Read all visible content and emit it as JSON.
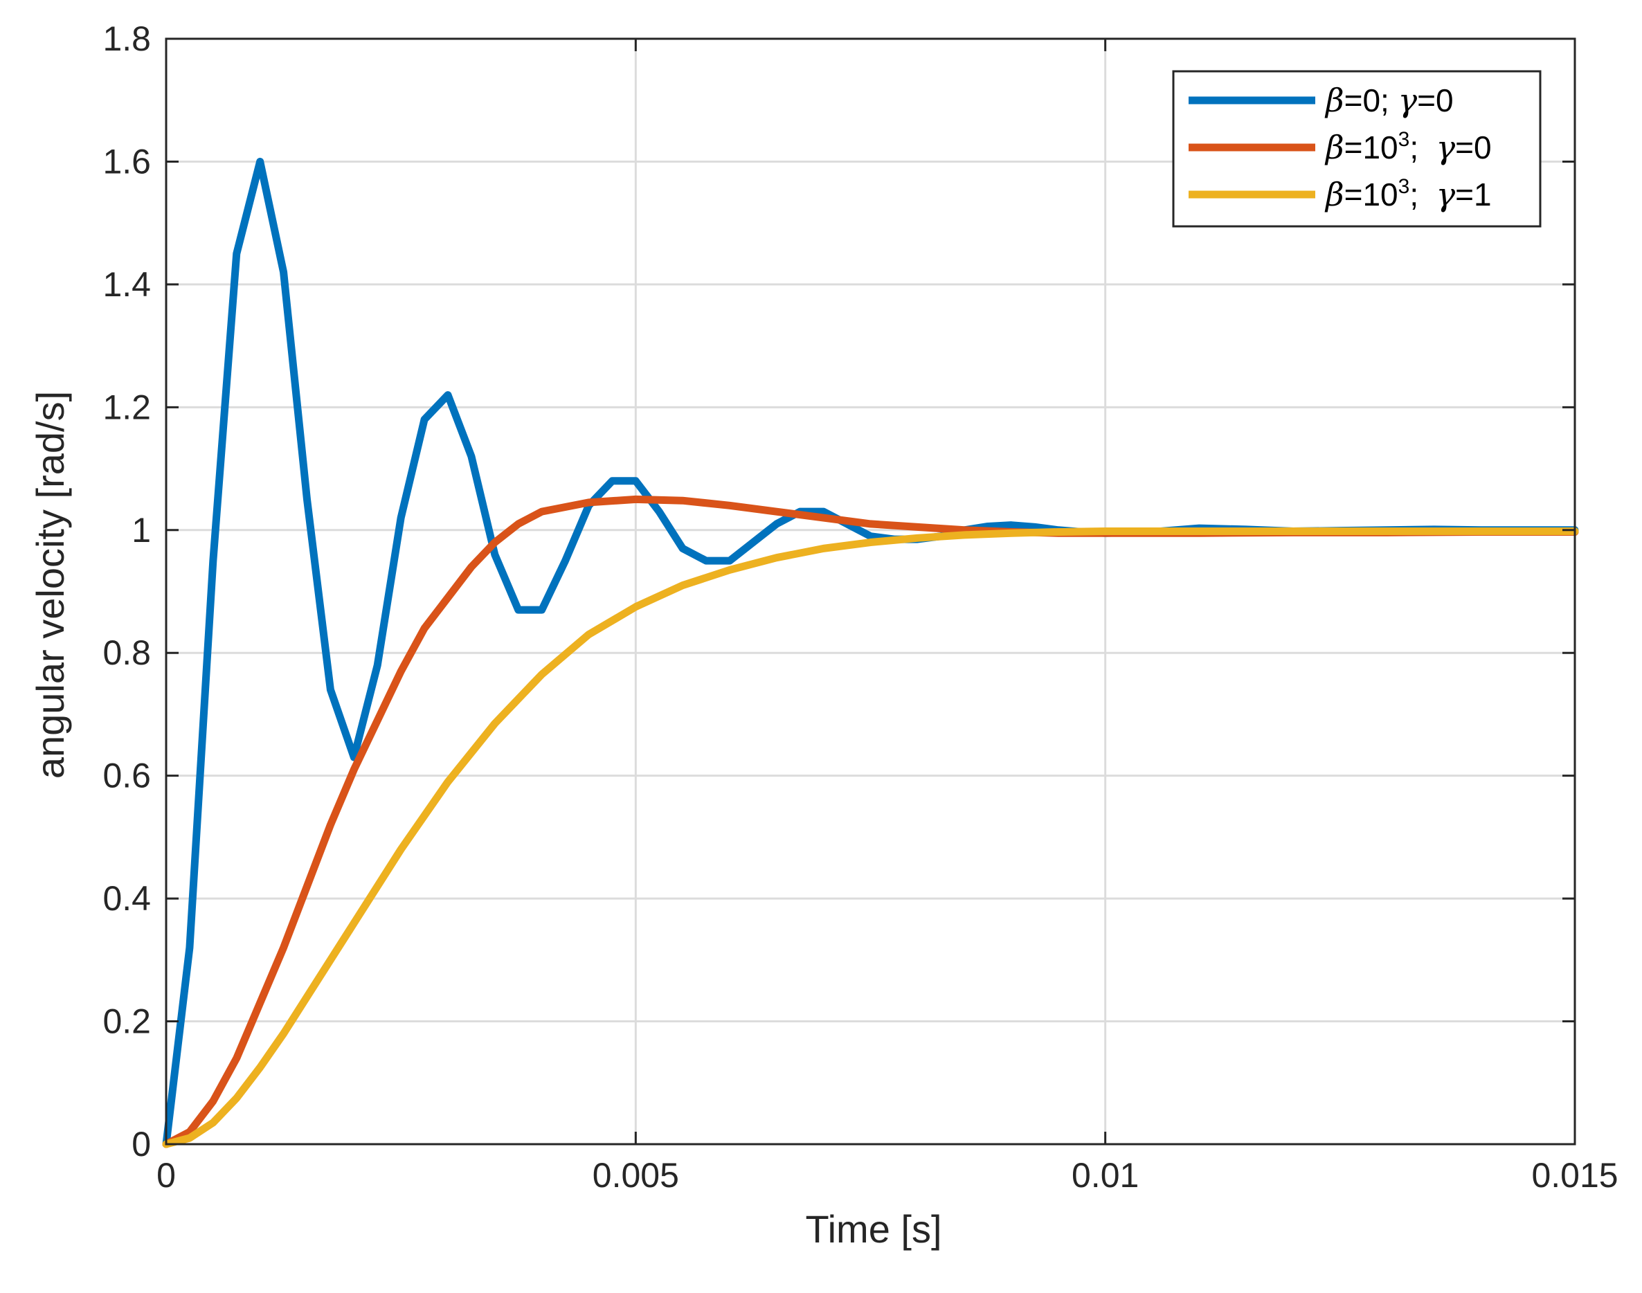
{
  "chart_data": {
    "type": "line",
    "title": "",
    "xlabel": "Time [s]",
    "ylabel": "angular velocity [rad/s]",
    "xlim": [
      0,
      0.015
    ],
    "ylim": [
      0,
      1.8
    ],
    "xticks": [
      0,
      0.005,
      0.01,
      0.015
    ],
    "xtick_labels": [
      "0",
      "0.005",
      "0.01",
      "0.015"
    ],
    "yticks": [
      0,
      0.2,
      0.4,
      0.6,
      0.8,
      1.0,
      1.2,
      1.4,
      1.6,
      1.8
    ],
    "ytick_labels": [
      "0",
      "0.2",
      "0.4",
      "0.6",
      "0.8",
      "1",
      "1.2",
      "1.4",
      "1.6",
      "1.8"
    ],
    "grid": true,
    "legend_position": "top-right",
    "series": [
      {
        "name": "β=0; γ=0",
        "legend": {
          "beta_symbol": "β",
          "beta_value": "=0;",
          "beta_exp": "",
          "gamma_symbol": "γ",
          "gamma_value": "=0"
        },
        "color": "#0072BD",
        "x": [
          0,
          0.00025,
          0.0005,
          0.00075,
          0.001,
          0.00125,
          0.0015,
          0.00175,
          0.002,
          0.00225,
          0.0025,
          0.00275,
          0.003,
          0.00325,
          0.0035,
          0.00375,
          0.004,
          0.00425,
          0.0045,
          0.00475,
          0.005,
          0.00525,
          0.0055,
          0.00575,
          0.006,
          0.00625,
          0.0065,
          0.00675,
          0.007,
          0.00725,
          0.0075,
          0.00775,
          0.008,
          0.00825,
          0.0085,
          0.00875,
          0.009,
          0.00925,
          0.0095,
          0.00975,
          0.01,
          0.0105,
          0.011,
          0.0115,
          0.012,
          0.0125,
          0.013,
          0.0135,
          0.014,
          0.0145,
          0.015
        ],
        "y": [
          0,
          0.32,
          0.95,
          1.45,
          1.6,
          1.42,
          1.05,
          0.74,
          0.63,
          0.78,
          1.02,
          1.18,
          1.22,
          1.12,
          0.96,
          0.87,
          0.87,
          0.95,
          1.04,
          1.08,
          1.08,
          1.03,
          0.97,
          0.95,
          0.95,
          0.98,
          1.01,
          1.03,
          1.03,
          1.01,
          0.99,
          0.985,
          0.985,
          0.99,
          1.0,
          1.006,
          1.008,
          1.005,
          1.0,
          0.997,
          0.995,
          0.997,
          1.003,
          1.001,
          0.998,
          0.999,
          1.0,
          1.001,
          1.0,
          1.0,
          1.0
        ]
      },
      {
        "name": "β=10³; γ=0",
        "legend": {
          "beta_symbol": "β",
          "beta_value": "=10",
          "beta_exp": "3",
          "gamma_symbol": "γ",
          "gamma_value": "=0"
        },
        "color": "#D95319",
        "x": [
          0,
          0.00025,
          0.0005,
          0.00075,
          0.001,
          0.00125,
          0.0015,
          0.00175,
          0.002,
          0.00225,
          0.0025,
          0.00275,
          0.003,
          0.00325,
          0.0035,
          0.00375,
          0.004,
          0.0045,
          0.005,
          0.0055,
          0.006,
          0.0065,
          0.007,
          0.0075,
          0.008,
          0.0085,
          0.009,
          0.0095,
          0.01,
          0.011,
          0.012,
          0.013,
          0.014,
          0.015
        ],
        "y": [
          0,
          0.02,
          0.07,
          0.14,
          0.23,
          0.32,
          0.42,
          0.52,
          0.61,
          0.69,
          0.77,
          0.84,
          0.89,
          0.94,
          0.98,
          1.01,
          1.03,
          1.045,
          1.05,
          1.048,
          1.04,
          1.03,
          1.02,
          1.01,
          1.005,
          1.0,
          0.997,
          0.995,
          0.995,
          0.995,
          0.996,
          0.996,
          0.997,
          0.997
        ]
      },
      {
        "name": "β=10³; γ=1",
        "legend": {
          "beta_symbol": "β",
          "beta_value": "=10",
          "beta_exp": "3",
          "gamma_symbol": "γ",
          "gamma_value": "=1"
        },
        "color": "#EDB120",
        "x": [
          0,
          0.00025,
          0.0005,
          0.00075,
          0.001,
          0.00125,
          0.0015,
          0.00175,
          0.002,
          0.0025,
          0.003,
          0.0035,
          0.004,
          0.0045,
          0.005,
          0.0055,
          0.006,
          0.0065,
          0.007,
          0.0075,
          0.008,
          0.0085,
          0.009,
          0.0095,
          0.01,
          0.011,
          0.012,
          0.013,
          0.014,
          0.015
        ],
        "y": [
          0,
          0.01,
          0.035,
          0.075,
          0.125,
          0.18,
          0.24,
          0.3,
          0.36,
          0.48,
          0.59,
          0.685,
          0.765,
          0.83,
          0.875,
          0.91,
          0.935,
          0.955,
          0.97,
          0.98,
          0.987,
          0.992,
          0.995,
          0.997,
          0.998,
          0.998,
          0.998,
          0.998,
          0.998,
          0.998
        ]
      }
    ]
  }
}
